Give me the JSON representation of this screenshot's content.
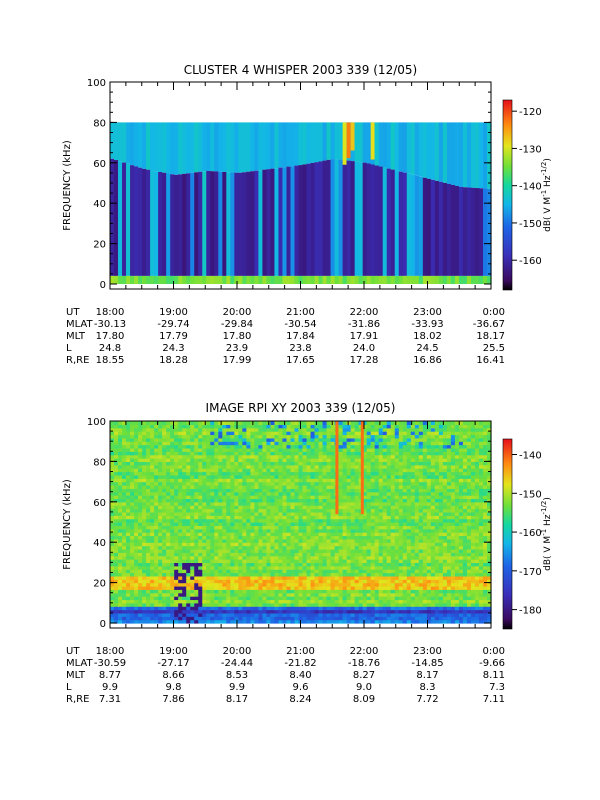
{
  "chart_data": [
    {
      "type": "heatmap",
      "title": "CLUSTER 4 WHISPER 2003 339 (12/05)",
      "ylabel": "FREQUENCY (kHz)",
      "ylim": [
        0,
        100
      ],
      "yticks": [
        "0",
        "20",
        "40",
        "60",
        "80",
        "100"
      ],
      "xlim": [
        "18:00",
        "0:00"
      ],
      "colorbar": {
        "label_parts": [
          "dB( V M",
          "-1",
          " Hz",
          "-1/2",
          ")"
        ],
        "range": [
          -168,
          -117
        ],
        "ticks": [
          "-120",
          "-130",
          "-140",
          "-150",
          "-160"
        ]
      },
      "data_ceiling_khz": 80,
      "noise_floor_khz": [
        [
          18.0,
          62
        ],
        [
          18.5,
          57
        ],
        [
          19.0,
          54
        ],
        [
          19.5,
          56
        ],
        [
          20.0,
          55
        ],
        [
          20.5,
          57
        ],
        [
          21.0,
          59
        ],
        [
          21.5,
          62
        ],
        [
          22.0,
          60
        ],
        [
          22.5,
          56
        ],
        [
          23.0,
          52
        ],
        [
          23.5,
          48
        ],
        [
          24.0,
          47
        ]
      ],
      "ephemeris": {
        "labels": [
          "UT",
          "MLAT",
          "MLT",
          "L",
          "R,RE"
        ],
        "rows": [
          [
            "18:00",
            "19:00",
            "20:00",
            "21:00",
            "22:00",
            "23:00",
            "0:00"
          ],
          [
            "-30.13",
            "-29.74",
            "-29.84",
            "-30.54",
            "-31.86",
            "-33.93",
            "-36.67"
          ],
          [
            "17.80",
            "17.79",
            "17.80",
            "17.84",
            "17.91",
            "18.02",
            "18.17"
          ],
          [
            "24.8",
            "24.3",
            "23.9",
            "23.8",
            "24.0",
            "24.5",
            "25.5"
          ],
          [
            "18.55",
            "18.28",
            "17.99",
            "17.65",
            "17.28",
            "16.86",
            "16.41"
          ]
        ]
      }
    },
    {
      "type": "heatmap",
      "title": "IMAGE RPI XY 2003 339 (12/05)",
      "ylabel": "FREQUENCY (kHz)",
      "ylim": [
        0,
        100
      ],
      "yticks": [
        "0",
        "20",
        "40",
        "60",
        "80",
        "100"
      ],
      "xlim": [
        "18:00",
        "0:00"
      ],
      "colorbar": {
        "label_parts": [
          "dB( V M",
          "-1",
          " Hz",
          "-1/2",
          ")"
        ],
        "range": [
          -185,
          -136
        ],
        "ticks": [
          "-140",
          "-150",
          "-160",
          "-170",
          "-180"
        ]
      },
      "ephemeris": {
        "labels": [
          "UT",
          "MLAT",
          "MLT",
          "L",
          "R,RE"
        ],
        "rows": [
          [
            "18:00",
            "19:00",
            "20:00",
            "21:00",
            "22:00",
            "23:00",
            "0:00"
          ],
          [
            "-30.59",
            "-27.17",
            "-24.44",
            "-21.82",
            "-18.76",
            "-14.85",
            "-9.66"
          ],
          [
            "8.77",
            "8.66",
            "8.53",
            "8.40",
            "8.27",
            "8.17",
            "8.11"
          ],
          [
            "9.9",
            "9.8",
            "9.9",
            "9.6",
            "9.0",
            "8.3",
            "7.3"
          ],
          [
            "7.31",
            "7.86",
            "8.17",
            "8.24",
            "8.09",
            "7.72",
            "7.11"
          ]
        ]
      }
    }
  ]
}
